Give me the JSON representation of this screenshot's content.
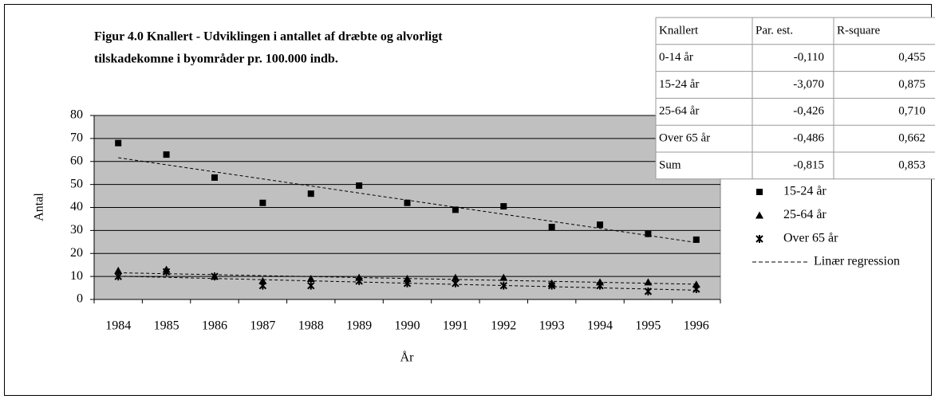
{
  "chart_data": {
    "type": "scatter",
    "title_lines": [
      "Figur 4.0 Knallert - Udviklingen i antallet af dræbte og alvorligt",
      "tilskadekomne i byområder pr. 100.000 indb."
    ],
    "x_label": "År",
    "y_label": "Antal",
    "categories": [
      "1984",
      "1985",
      "1986",
      "1987",
      "1988",
      "1989",
      "1990",
      "1991",
      "1992",
      "1993",
      "1994",
      "1995",
      "1996"
    ],
    "series": [
      {
        "name": "15-24 år",
        "marker": "square",
        "color": "#000000",
        "values": [
          68,
          63,
          53,
          42,
          46,
          49.5,
          42,
          39,
          40.5,
          31.5,
          32.5,
          28.5,
          26
        ]
      },
      {
        "name": "25-64 år",
        "marker": "triangle",
        "color": "#000000",
        "values": [
          12.5,
          13,
          10,
          8,
          9,
          9.5,
          9,
          9.5,
          9.5,
          7,
          7.5,
          7.5,
          6.5
        ]
      },
      {
        "name": "Over 65 år",
        "marker": "cross",
        "color": "#000000",
        "values": [
          10,
          12,
          10,
          6,
          6,
          8,
          7,
          7,
          6,
          6,
          6,
          3.5,
          4.5
        ]
      }
    ],
    "trendline_label": "Linær regression",
    "ylim": [
      0,
      80
    ],
    "yticks": [
      0,
      10,
      20,
      30,
      40,
      50,
      60,
      70,
      80
    ],
    "grid": true,
    "plot_background": "#c0c0c0"
  },
  "table": {
    "header": [
      "Knallert",
      "Par. est.",
      "R-square"
    ],
    "rows": [
      [
        "0-14 år",
        "-0,110",
        "0,455"
      ],
      [
        "15-24 år",
        "-3,070",
        "0,875"
      ],
      [
        "25-64 år",
        "-0,426",
        "0,710"
      ],
      [
        "Over 65 år",
        "-0,486",
        "0,662"
      ],
      [
        "Sum",
        "-0,815",
        "0,853"
      ]
    ]
  }
}
